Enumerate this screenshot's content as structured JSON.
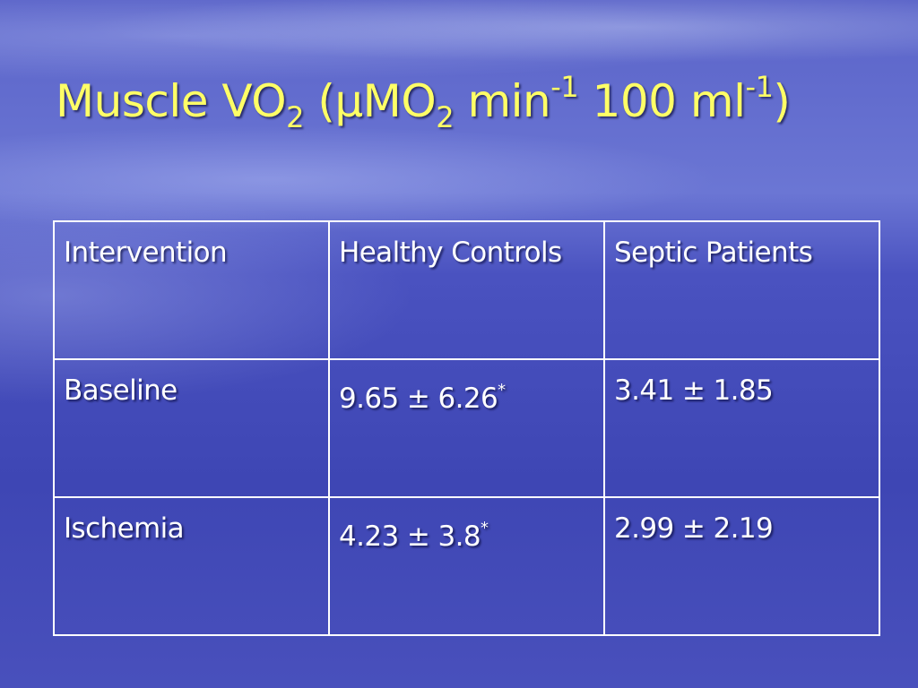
{
  "title": {
    "parts": [
      {
        "text": "Muscle VO"
      },
      {
        "text": "2",
        "position": "sub"
      },
      {
        "text": " (μMO"
      },
      {
        "text": "2",
        "position": "sub"
      },
      {
        "text": " min"
      },
      {
        "text": "-1",
        "position": "sup"
      },
      {
        "text": " 100 ml"
      },
      {
        "text": "-1",
        "position": "sup"
      },
      {
        "text": ")"
      }
    ]
  },
  "table": {
    "rows": [
      [
        {
          "text": "Intervention"
        },
        {
          "text": "Healthy Controls"
        },
        {
          "text": "Septic Patients"
        }
      ],
      [
        {
          "text": "Baseline"
        },
        {
          "text": "9.65 ± 6.26",
          "sup": "*"
        },
        {
          "text": "3.41 ± 1.85"
        }
      ],
      [
        {
          "text": "Ischemia"
        },
        {
          "text": "4.23 ± 3.8",
          "sup": "*"
        },
        {
          "text": "2.99 ± 2.19"
        }
      ]
    ]
  }
}
